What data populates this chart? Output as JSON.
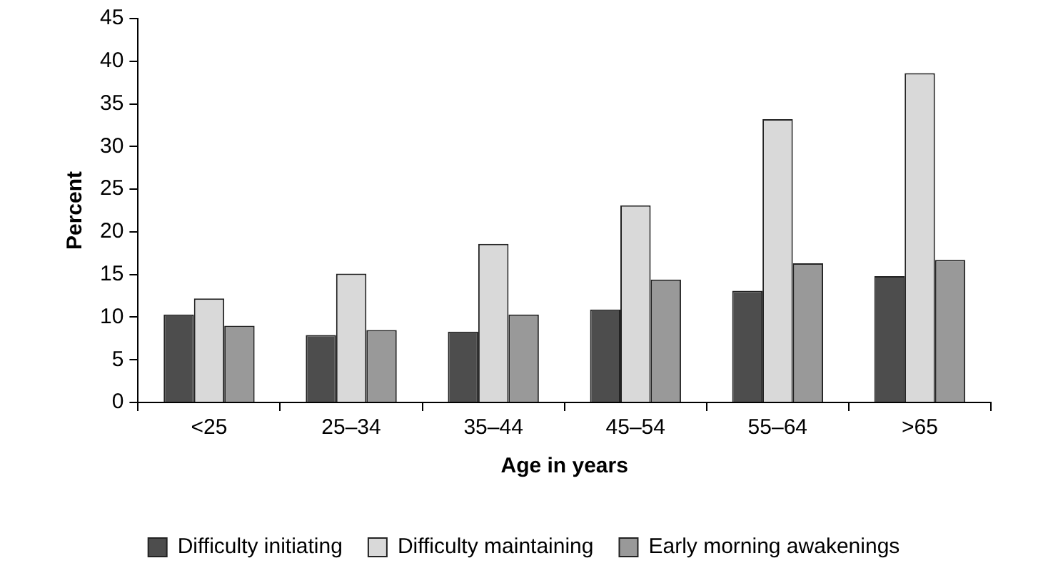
{
  "chart_data": {
    "type": "bar",
    "xlabel": "Age in years",
    "ylabel": "Percent",
    "categories": [
      "<25",
      "25–34",
      "35–44",
      "45–54",
      "55–64",
      ">65"
    ],
    "series": [
      {
        "name": "Difficulty initiating",
        "color": "#4d4d4d",
        "values": [
          10.3,
          7.9,
          8.3,
          10.9,
          13.1,
          14.8
        ]
      },
      {
        "name": "Difficulty maintaining",
        "color": "#d9d9d9",
        "values": [
          12.2,
          15.1,
          18.6,
          23.1,
          33.2,
          38.6
        ]
      },
      {
        "name": "Early morning awakenings",
        "color": "#999999",
        "values": [
          9.0,
          8.5,
          10.3,
          14.4,
          16.3,
          16.7
        ]
      }
    ],
    "ylim": [
      0,
      45
    ],
    "yticks": [
      0,
      5,
      10,
      15,
      20,
      25,
      30,
      35,
      40,
      45
    ],
    "grid": false,
    "legend": "bottom"
  }
}
